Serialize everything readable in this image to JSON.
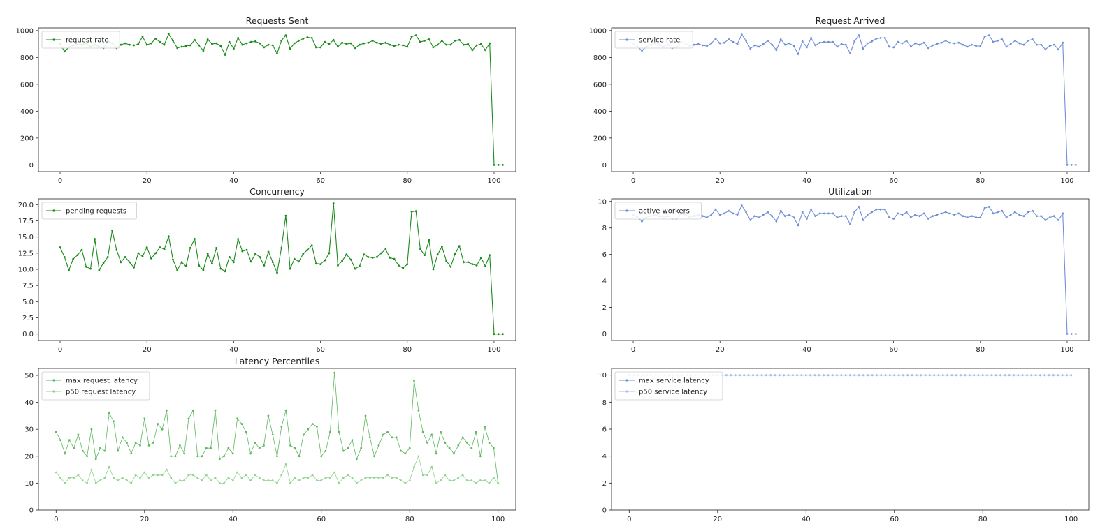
{
  "chart_data": [
    {
      "type": "line",
      "title": "Requests Sent",
      "xlabel": "",
      "ylabel": "",
      "xlim": [
        -5,
        105
      ],
      "ylim": [
        -50,
        1020
      ],
      "xticks": [
        0,
        20,
        40,
        60,
        80,
        100
      ],
      "yticks": [
        0,
        200,
        400,
        600,
        800,
        1000
      ],
      "legend": "upper left",
      "series": [
        {
          "name": "request rate",
          "color": "#1a8c1a",
          "values": [
            900,
            845,
            875,
            890,
            895,
            895,
            905,
            880,
            895,
            880,
            870,
            920,
            905,
            870,
            895,
            905,
            895,
            890,
            900,
            955,
            895,
            905,
            940,
            915,
            895,
            975,
            925,
            870,
            880,
            885,
            890,
            930,
            890,
            850,
            935,
            900,
            905,
            885,
            820,
            915,
            865,
            945,
            895,
            905,
            915,
            920,
            905,
            875,
            895,
            890,
            830,
            925,
            965,
            865,
            905,
            925,
            940,
            950,
            945,
            875,
            875,
            915,
            900,
            930,
            880,
            910,
            900,
            905,
            870,
            895,
            905,
            910,
            925,
            910,
            900,
            910,
            895,
            885,
            895,
            890,
            880,
            955,
            965,
            915,
            925,
            935,
            875,
            895,
            925,
            895,
            895,
            925,
            930,
            895,
            900,
            855,
            890,
            900,
            855,
            905,
            0,
            0,
            0
          ]
        }
      ]
    },
    {
      "type": "line",
      "title": "Request Arrived",
      "xlabel": "",
      "ylabel": "",
      "xlim": [
        -5,
        105
      ],
      "ylim": [
        -50,
        1020
      ],
      "xticks": [
        0,
        20,
        40,
        60,
        80,
        100
      ],
      "yticks": [
        0,
        200,
        400,
        600,
        800,
        1000
      ],
      "legend": "upper left",
      "series": [
        {
          "name": "service rate",
          "color": "#6f8fd6",
          "values": [
            905,
            880,
            850,
            880,
            895,
            905,
            895,
            880,
            895,
            870,
            875,
            915,
            905,
            885,
            895,
            900,
            890,
            885,
            905,
            940,
            905,
            910,
            935,
            915,
            900,
            970,
            925,
            865,
            890,
            880,
            900,
            925,
            895,
            855,
            935,
            895,
            905,
            885,
            825,
            920,
            875,
            945,
            890,
            910,
            915,
            915,
            915,
            880,
            900,
            895,
            830,
            920,
            965,
            865,
            905,
            920,
            940,
            945,
            945,
            880,
            875,
            915,
            905,
            925,
            880,
            905,
            895,
            910,
            870,
            890,
            900,
            910,
            925,
            910,
            905,
            910,
            895,
            880,
            895,
            885,
            885,
            955,
            965,
            915,
            925,
            935,
            880,
            900,
            925,
            905,
            895,
            925,
            935,
            895,
            895,
            860,
            885,
            895,
            860,
            910,
            0,
            0,
            0
          ]
        }
      ]
    },
    {
      "type": "line",
      "title": "Concurrency",
      "xlabel": "",
      "ylabel": "",
      "xlim": [
        -5,
        105
      ],
      "ylim": [
        -1,
        20.9
      ],
      "xticks": [
        0,
        20,
        40,
        60,
        80,
        100
      ],
      "yticks": [
        0.0,
        2.5,
        5.0,
        7.5,
        10.0,
        12.5,
        15.0,
        17.5,
        20.0
      ],
      "legend": "upper left",
      "series": [
        {
          "name": "pending requests",
          "color": "#1a8c1a",
          "values": [
            13.4,
            11.9,
            9.9,
            11.6,
            12.2,
            13.0,
            10.4,
            10.1,
            14.7,
            9.9,
            11.0,
            11.9,
            16.0,
            13.0,
            11.1,
            11.9,
            11.1,
            10.3,
            12.5,
            12.0,
            13.4,
            11.7,
            12.5,
            13.4,
            13.1,
            15.1,
            11.5,
            9.9,
            11.1,
            10.5,
            13.3,
            14.7,
            10.6,
            9.9,
            12.4,
            10.9,
            13.3,
            10.1,
            9.7,
            11.9,
            11.1,
            14.7,
            12.8,
            13.0,
            11.2,
            12.4,
            11.9,
            10.6,
            12.7,
            11.1,
            9.5,
            13.3,
            18.3,
            10.1,
            11.6,
            11.2,
            12.4,
            13.0,
            13.7,
            10.9,
            10.8,
            11.4,
            12.5,
            20.2,
            10.6,
            11.3,
            12.3,
            11.5,
            10.1,
            10.5,
            12.3,
            11.9,
            11.8,
            11.9,
            12.5,
            13.1,
            11.8,
            11.6,
            10.6,
            10.2,
            10.8,
            18.9,
            19.0,
            13.1,
            12.2,
            14.5,
            10.0,
            12.3,
            13.5,
            11.3,
            10.4,
            12.4,
            13.6,
            11.1,
            11.1,
            10.8,
            10.6,
            11.8,
            10.5,
            12.2,
            0.0,
            0.0,
            0.0
          ]
        }
      ]
    },
    {
      "type": "line",
      "title": "Utilization",
      "xlabel": "",
      "ylabel": "",
      "xlim": [
        -5,
        105
      ],
      "ylim": [
        -0.5,
        10.2
      ],
      "xticks": [
        0,
        20,
        40,
        60,
        80,
        100
      ],
      "yticks": [
        0,
        2,
        4,
        6,
        8,
        10
      ],
      "legend": "upper left",
      "series": [
        {
          "name": "active workers",
          "color": "#6f8fd6",
          "values": [
            9.0,
            8.8,
            8.5,
            8.8,
            8.9,
            9.0,
            8.9,
            8.8,
            8.9,
            8.7,
            8.7,
            9.1,
            9.0,
            8.8,
            8.9,
            9.0,
            8.9,
            8.8,
            9.0,
            9.4,
            9.0,
            9.1,
            9.3,
            9.1,
            9.0,
            9.7,
            9.2,
            8.6,
            8.9,
            8.8,
            9.0,
            9.2,
            8.9,
            8.5,
            9.3,
            8.9,
            9.0,
            8.8,
            8.2,
            9.2,
            8.7,
            9.4,
            8.9,
            9.1,
            9.1,
            9.1,
            9.1,
            8.8,
            8.9,
            8.9,
            8.3,
            9.2,
            9.6,
            8.6,
            9.0,
            9.2,
            9.4,
            9.4,
            9.4,
            8.8,
            8.7,
            9.1,
            9.0,
            9.2,
            8.8,
            9.0,
            8.9,
            9.1,
            8.7,
            8.9,
            9.0,
            9.1,
            9.2,
            9.1,
            9.0,
            9.1,
            8.9,
            8.8,
            8.9,
            8.8,
            8.8,
            9.5,
            9.6,
            9.1,
            9.2,
            9.3,
            8.8,
            9.0,
            9.2,
            9.0,
            8.9,
            9.2,
            9.3,
            8.9,
            8.9,
            8.6,
            8.8,
            8.9,
            8.6,
            9.1,
            0.0,
            0.0,
            0.0
          ]
        }
      ]
    },
    {
      "type": "line",
      "title": "Latency Percentiles",
      "xlabel": "",
      "ylabel": "",
      "xlim": [
        -4,
        104
      ],
      "ylim": [
        0,
        52.6
      ],
      "xticks": [
        0,
        20,
        40,
        60,
        80,
        100
      ],
      "yticks": [
        0,
        10,
        20,
        30,
        40,
        50
      ],
      "legend": "upper left",
      "series": [
        {
          "name": "max request latency",
          "color": "#5cb85c",
          "values": [
            29,
            26,
            21,
            26,
            23,
            28,
            22,
            20,
            30,
            19,
            23,
            22,
            36,
            33,
            22,
            27,
            25,
            21,
            25,
            24,
            34,
            24,
            25,
            32,
            30,
            37,
            20,
            20,
            24,
            21,
            34,
            37,
            20,
            20,
            23,
            23,
            37,
            19,
            20,
            23,
            21,
            34,
            32,
            29,
            21,
            25,
            23,
            24,
            35,
            28,
            20,
            31,
            37,
            24,
            23,
            20,
            28,
            30,
            32,
            31,
            20,
            22,
            29,
            51,
            29,
            22,
            23,
            26,
            19,
            23,
            35,
            27,
            20,
            24,
            28,
            29,
            27,
            27,
            22,
            21,
            23,
            48,
            37,
            29,
            25,
            28,
            21,
            29,
            25,
            23,
            21,
            24,
            27,
            25,
            23,
            29,
            20,
            31,
            25,
            23,
            10
          ]
        },
        {
          "name": "p50 request latency",
          "color": "#8fd48f",
          "values": [
            14,
            12,
            10,
            12,
            12,
            13,
            11,
            10,
            15,
            10,
            11,
            12,
            16,
            12,
            11,
            12,
            11,
            10,
            13,
            12,
            14,
            12,
            13,
            13,
            13,
            15,
            12,
            10,
            11,
            11,
            13,
            13,
            12,
            11,
            13,
            11,
            12,
            10,
            10,
            12,
            11,
            14,
            12,
            13,
            11,
            13,
            12,
            11,
            11,
            11,
            10,
            13,
            17,
            10,
            12,
            11,
            12,
            12,
            13,
            11,
            11,
            12,
            12,
            14,
            10,
            12,
            13,
            12,
            10,
            11,
            12,
            12,
            12,
            12,
            12,
            13,
            12,
            12,
            11,
            10,
            11,
            16,
            20,
            13,
            13,
            16,
            10,
            11,
            13,
            11,
            11,
            12,
            13,
            11,
            11,
            10,
            11,
            11,
            10,
            12,
            10
          ]
        }
      ]
    },
    {
      "type": "line",
      "title": "",
      "xlabel": "",
      "ylabel": "",
      "xlim": [
        -4,
        104
      ],
      "ylim": [
        0,
        10.5
      ],
      "xticks": [
        0,
        20,
        40,
        60,
        80,
        100
      ],
      "yticks": [
        0,
        2,
        4,
        6,
        8,
        10
      ],
      "legend": "upper left",
      "series": [
        {
          "name": "max service latency",
          "color": "#6f8fd6",
          "values": [
            10,
            10,
            10,
            10,
            10,
            10,
            10,
            10,
            10,
            10,
            10,
            10,
            10,
            10,
            10,
            10,
            10,
            10,
            10,
            10,
            10,
            10,
            10,
            10,
            10,
            10,
            10,
            10,
            10,
            10,
            10,
            10,
            10,
            10,
            10,
            10,
            10,
            10,
            10,
            10,
            10,
            10,
            10,
            10,
            10,
            10,
            10,
            10,
            10,
            10,
            10,
            10,
            10,
            10,
            10,
            10,
            10,
            10,
            10,
            10,
            10,
            10,
            10,
            10,
            10,
            10,
            10,
            10,
            10,
            10,
            10,
            10,
            10,
            10,
            10,
            10,
            10,
            10,
            10,
            10,
            10,
            10,
            10,
            10,
            10,
            10,
            10,
            10,
            10,
            10,
            10,
            10,
            10,
            10,
            10,
            10,
            10,
            10,
            10,
            10,
            10
          ]
        },
        {
          "name": "p50 service latency",
          "color": "#a9bfe9",
          "values": [
            10,
            10,
            10,
            10,
            10,
            10,
            10,
            10,
            10,
            10,
            10,
            10,
            10,
            10,
            10,
            10,
            10,
            10,
            10,
            10,
            10,
            10,
            10,
            10,
            10,
            10,
            10,
            10,
            10,
            10,
            10,
            10,
            10,
            10,
            10,
            10,
            10,
            10,
            10,
            10,
            10,
            10,
            10,
            10,
            10,
            10,
            10,
            10,
            10,
            10,
            10,
            10,
            10,
            10,
            10,
            10,
            10,
            10,
            10,
            10,
            10,
            10,
            10,
            10,
            10,
            10,
            10,
            10,
            10,
            10,
            10,
            10,
            10,
            10,
            10,
            10,
            10,
            10,
            10,
            10,
            10,
            10,
            10,
            10,
            10,
            10,
            10,
            10,
            10,
            10,
            10,
            10,
            10,
            10,
            10,
            10,
            10,
            10,
            10,
            10,
            10
          ]
        }
      ]
    }
  ]
}
